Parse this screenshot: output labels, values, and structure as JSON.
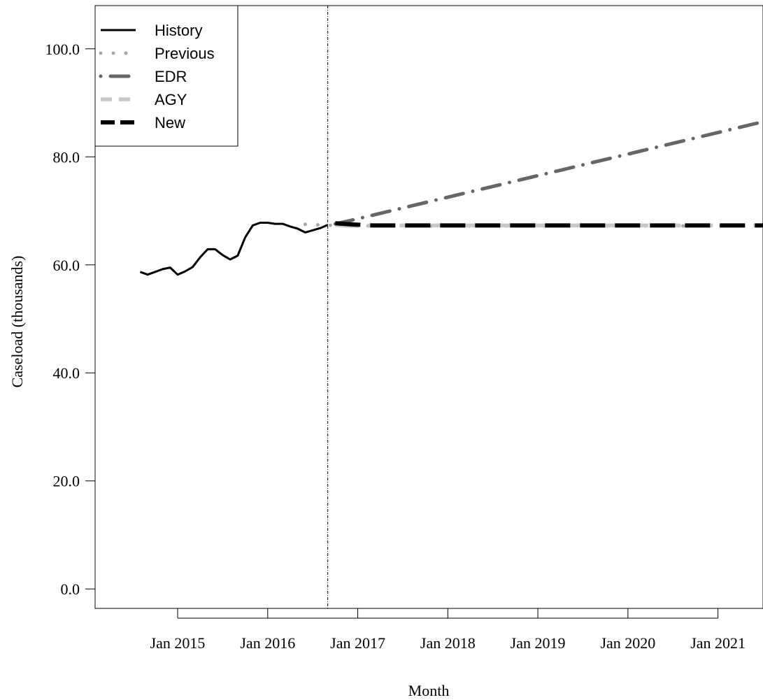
{
  "chart_data": {
    "type": "line",
    "title": "",
    "xlabel": "Month",
    "ylabel": "Caseload (thousands)",
    "x_axis": {
      "type": "date",
      "ticks": [
        "2015-01",
        "2016-01",
        "2017-01",
        "2018-01",
        "2019-01",
        "2020-01",
        "2021-01"
      ],
      "tick_labels": [
        "Jan 2015",
        "Jan 2016",
        "Jan 2017",
        "Jan 2018",
        "Jan 2019",
        "Jan 2020",
        "Jan 2021"
      ],
      "range": [
        "2014-02",
        "2021-07"
      ]
    },
    "y_axis": {
      "ticks": [
        0,
        20,
        40,
        60,
        80,
        100
      ],
      "tick_labels": [
        "0.0",
        "20.0",
        "40.0",
        "60.0",
        "80.0",
        "100.0"
      ],
      "range": [
        -3.6,
        108
      ]
    },
    "grid": false,
    "legend": {
      "placement": "top-left"
    },
    "forecast_start_marker": "2016-09",
    "series": [
      {
        "name": "History",
        "color": "#000000",
        "line_style": "solid",
        "points": [
          [
            "2014-08",
            58.7
          ],
          [
            "2014-09",
            58.2
          ],
          [
            "2014-10",
            58.7
          ],
          [
            "2014-11",
            59.2
          ],
          [
            "2014-12",
            59.5
          ],
          [
            "2015-01",
            58.2
          ],
          [
            "2015-02",
            58.8
          ],
          [
            "2015-03",
            59.6
          ],
          [
            "2015-04",
            61.4
          ],
          [
            "2015-05",
            62.9
          ],
          [
            "2015-06",
            62.9
          ],
          [
            "2015-07",
            61.8
          ],
          [
            "2015-08",
            61.0
          ],
          [
            "2015-09",
            61.7
          ],
          [
            "2015-10",
            65.1
          ],
          [
            "2015-11",
            67.3
          ],
          [
            "2015-12",
            67.8
          ],
          [
            "2016-01",
            67.8
          ],
          [
            "2016-02",
            67.6
          ],
          [
            "2016-03",
            67.6
          ],
          [
            "2016-04",
            67.1
          ],
          [
            "2016-05",
            66.7
          ],
          [
            "2016-06",
            66.0
          ],
          [
            "2016-07",
            66.4
          ],
          [
            "2016-08",
            66.8
          ],
          [
            "2016-09",
            67.4
          ]
        ]
      },
      {
        "name": "Previous",
        "color": "#a6a6a6",
        "line_style": "dotted",
        "points": [
          [
            "2016-06",
            67.5
          ],
          [
            "2016-12",
            67.2
          ],
          [
            "2021-04",
            67.2
          ]
        ]
      },
      {
        "name": "EDR",
        "color": "#666666",
        "line_style": "dashdot",
        "points": [
          [
            "2016-10",
            67.6
          ],
          [
            "2016-12",
            68.2
          ],
          [
            "2021-07",
            86.5
          ]
        ]
      },
      {
        "name": "AGY",
        "color": "#c8c8c8",
        "line_style": "dashed",
        "points": [
          [
            "2016-10",
            67.4
          ],
          [
            "2016-12",
            67.2
          ],
          [
            "2017-03",
            67.3
          ],
          [
            "2021-07",
            67.3
          ]
        ]
      },
      {
        "name": "New",
        "color": "#000000",
        "line_style": "dashed",
        "points": [
          [
            "2016-10",
            67.7
          ],
          [
            "2016-12",
            67.5
          ],
          [
            "2017-03",
            67.3
          ],
          [
            "2021-07",
            67.3
          ]
        ]
      }
    ]
  }
}
